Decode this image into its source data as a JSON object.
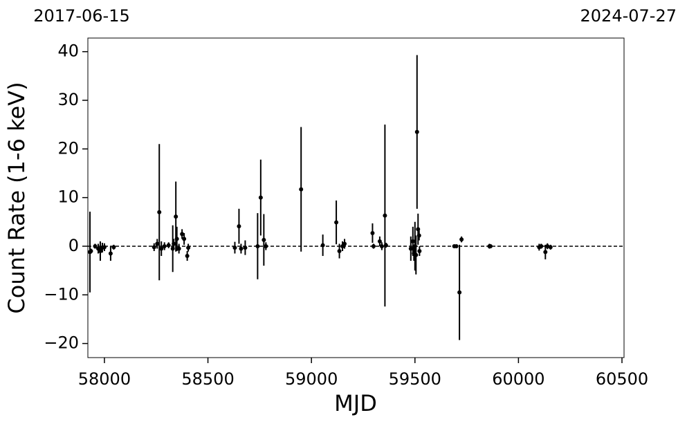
{
  "chart_data": {
    "type": "scatter",
    "top_left_label": "2017-06-15",
    "top_right_label": "2024-07-27",
    "xlabel": "MJD",
    "ylabel": "Count Rate (1-6 keV)",
    "color": "#000000",
    "x": [
      57930,
      57935,
      57955,
      57970,
      57980,
      57990,
      58000,
      58030,
      58045,
      58240,
      58255,
      58265,
      58275,
      58290,
      58310,
      58330,
      58335,
      58345,
      58350,
      58360,
      58375,
      58385,
      58400,
      58405,
      58630,
      58650,
      58660,
      58680,
      58740,
      58755,
      58770,
      58780,
      58950,
      59055,
      59120,
      59135,
      59150,
      59160,
      59295,
      59300,
      59330,
      59340,
      59355,
      59360,
      59480,
      59490,
      59495,
      59500,
      59505,
      59510,
      59515,
      59520,
      59522,
      59690,
      59700,
      59715,
      59725,
      59860,
      59865,
      60100,
      60110,
      60130,
      60140,
      60155
    ],
    "values": [
      -1.2,
      -1.0,
      0,
      -0.5,
      -1,
      -0.3,
      -0.2,
      -1.5,
      -0.2,
      -0.2,
      0.5,
      7.0,
      -0.5,
      0,
      0.2,
      -0.5,
      0.5,
      6.1,
      1.5,
      -0.5,
      2.5,
      1.5,
      -2.0,
      -0.3,
      -0.3,
      4.1,
      -0.5,
      -0.3,
      0,
      10.0,
      1.3,
      0,
      11.7,
      0.2,
      4.9,
      -1,
      0,
      0.5,
      2.7,
      0,
      1.0,
      0,
      6.3,
      0.2,
      -0.5,
      1.0,
      -1.5,
      0,
      -1.8,
      23.5,
      3.5,
      2.2,
      -1.0,
      0,
      0,
      -9.5,
      1.4,
      0,
      0,
      -0.2,
      0,
      -1.2,
      0,
      -0.2
    ],
    "errors": [
      8.3,
      0.5,
      0.5,
      1,
      2,
      1,
      0.8,
      1.5,
      0.5,
      0.8,
      1,
      14,
      1.5,
      0.8,
      0.6,
      4.8,
      1,
      7.2,
      2.5,
      1,
      1,
      1.2,
      1,
      0.8,
      1.2,
      3.6,
      1,
      1.5,
      6.8,
      7.8,
      5.3,
      0.8,
      12.8,
      2.2,
      4.5,
      1.5,
      1,
      1,
      2.0,
      0.5,
      1,
      0.8,
      18.7,
      0.5,
      2.5,
      3,
      1.5,
      5,
      4,
      15.8,
      3.2,
      1,
      1,
      0.3,
      0.3,
      9.8,
      0.6,
      0.5,
      0.3,
      0.7,
      0.5,
      1.5,
      0.6,
      0.5
    ],
    "hline": 0,
    "xlim": [
      57920,
      60510
    ],
    "ylim": [
      -22.9,
      42.8
    ],
    "xticks": [
      58000,
      58500,
      59000,
      59500,
      60000,
      60500
    ],
    "yticks": [
      {
        "value": -20,
        "label": "−20"
      },
      {
        "value": -10,
        "label": "−10"
      },
      0,
      10,
      20,
      30,
      40
    ]
  }
}
